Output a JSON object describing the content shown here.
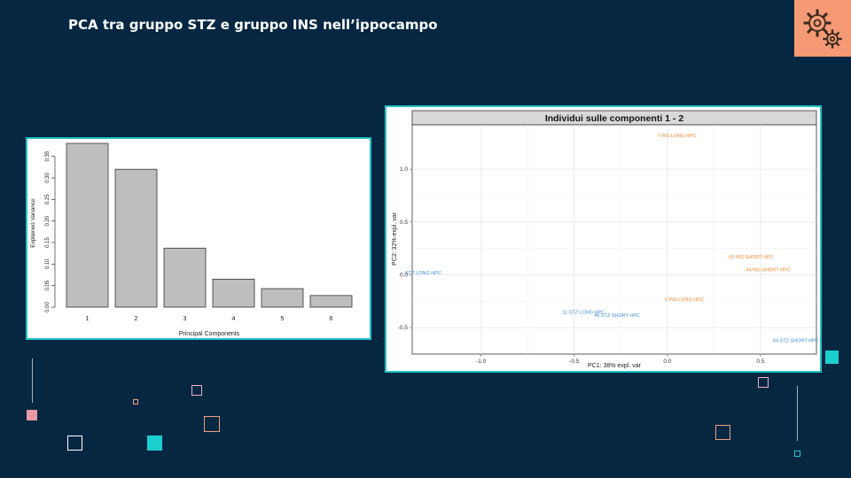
{
  "slide": {
    "title": "PCA tra gruppo STZ e gruppo INS nell’ippocampo",
    "icon": "gears-icon",
    "accent": "#22c3c6",
    "icon_bg": "#f59a74",
    "background": "#052742"
  },
  "chart_data": [
    {
      "type": "bar",
      "xlabel": "Principal Components",
      "ylabel": "Explained Variance",
      "categories": [
        "1",
        "2",
        "3",
        "4",
        "5",
        "6"
      ],
      "values": [
        0.38,
        0.32,
        0.137,
        0.065,
        0.043,
        0.027
      ],
      "yticks": [
        "0.00",
        "0.05",
        "0.10",
        "0.15",
        "0.20",
        "0.25",
        "0.30",
        "0.35"
      ],
      "ylim": [
        0,
        0.38
      ],
      "bar_color": "#bebebe"
    },
    {
      "type": "scatter",
      "title": "Individui sulle componenti 1 - 2",
      "xlabel": "PC1: 38% expl. var",
      "ylabel": "PC2: 32% expl. var",
      "xticks": [
        "-1.0",
        "-0.5",
        "0.0",
        "0.5"
      ],
      "yticks": [
        "-0.5",
        "0.0",
        "0.5",
        "1.0"
      ],
      "xlim": [
        -1.37,
        0.8
      ],
      "ylim": [
        -0.75,
        1.42
      ],
      "grid": true,
      "points": [
        {
          "label": "7  INS LONG  HPC",
          "x": 0.05,
          "y": 1.32,
          "color": "#f58a2b"
        },
        {
          "label": "69  INS SHORT  HPC",
          "x": 0.45,
          "y": 0.17,
          "color": "#f58a2b"
        },
        {
          "label": "44  INS SHORT  HPC",
          "x": 0.54,
          "y": 0.05,
          "color": "#f58a2b"
        },
        {
          "label": "9  INS LONG  HPC",
          "x": 0.09,
          "y": -0.23,
          "color": "#f58a2b"
        },
        {
          "label": "STZ LONG HPC",
          "x": -1.31,
          "y": 0.02,
          "color": "#3b8ed6"
        },
        {
          "label": "11 STZ LONG  HPC",
          "x": -0.45,
          "y": -0.35,
          "color": "#3b8ed6"
        },
        {
          "label": "46  STZ SHORT  HPC",
          "x": -0.27,
          "y": -0.38,
          "color": "#3b8ed6"
        },
        {
          "label": "64 STZ SHORT  HPC",
          "x": 0.69,
          "y": -0.62,
          "color": "#3b8ed6"
        }
      ]
    }
  ]
}
